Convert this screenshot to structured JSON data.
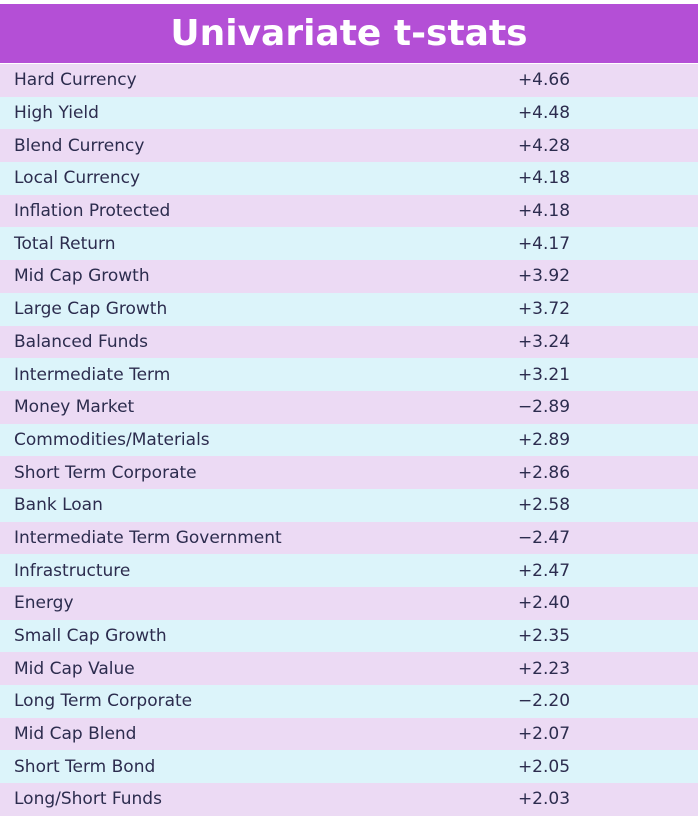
{
  "header": {
    "title": "Univariate t-stats"
  },
  "table": {
    "rows": [
      [
        "Hard Currency",
        "+4.66"
      ],
      [
        "High Yield",
        "+4.48"
      ],
      [
        "Blend Currency",
        "+4.28"
      ],
      [
        "Local Currency",
        "+4.18"
      ],
      [
        "Inflation Protected",
        "+4.18"
      ],
      [
        "Total Return",
        "+4.17"
      ],
      [
        "Mid Cap Growth",
        "+3.92"
      ],
      [
        "Large Cap Growth",
        "+3.72"
      ],
      [
        "Balanced Funds",
        "+3.24"
      ],
      [
        "Intermediate Term",
        "+3.21"
      ],
      [
        "Money Market",
        "−2.89"
      ],
      [
        "Commodities/Materials",
        "+2.89"
      ],
      [
        "Short Term Corporate",
        "+2.86"
      ],
      [
        "Bank Loan",
        "+2.58"
      ],
      [
        "Intermediate Term Government",
        "−2.47"
      ],
      [
        "Infrastructure",
        "+2.47"
      ],
      [
        "Energy",
        "+2.40"
      ],
      [
        "Small Cap Growth",
        "+2.35"
      ],
      [
        "Mid Cap Value",
        "+2.23"
      ],
      [
        "Long Term Corporate",
        "−2.20"
      ],
      [
        "Mid Cap Blend",
        "+2.07"
      ],
      [
        "Short Term Bond",
        "+2.05"
      ],
      [
        "Long/Short Funds",
        "+2.03"
      ]
    ]
  }
}
